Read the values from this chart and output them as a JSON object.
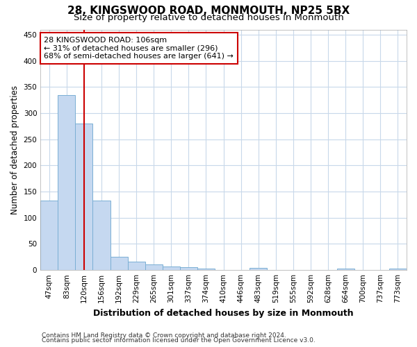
{
  "title": "28, KINGSWOOD ROAD, MONMOUTH, NP25 5BX",
  "subtitle": "Size of property relative to detached houses in Monmouth",
  "xlabel": "Distribution of detached houses by size in Monmouth",
  "ylabel": "Number of detached properties",
  "bar_labels": [
    "47sqm",
    "83sqm",
    "120sqm",
    "156sqm",
    "192sqm",
    "229sqm",
    "265sqm",
    "301sqm",
    "337sqm",
    "374sqm",
    "410sqm",
    "446sqm",
    "483sqm",
    "519sqm",
    "555sqm",
    "592sqm",
    "628sqm",
    "664sqm",
    "700sqm",
    "737sqm",
    "773sqm"
  ],
  "bar_values": [
    133,
    335,
    280,
    133,
    26,
    16,
    11,
    7,
    5,
    3,
    0,
    0,
    4,
    0,
    0,
    0,
    0,
    3,
    0,
    0,
    3
  ],
  "bar_color": "#c5d8f0",
  "bar_edge_color": "#7aafd4",
  "vline_x": 2.0,
  "vline_color": "#cc0000",
  "annotation_line1": "28 KINGSWOOD ROAD: 106sqm",
  "annotation_line2": "← 31% of detached houses are smaller (296)",
  "annotation_line3": "68% of semi-detached houses are larger (641) →",
  "annotation_box_color": "#ffffff",
  "annotation_box_edge": "#cc0000",
  "ylim": [
    0,
    460
  ],
  "yticks": [
    0,
    50,
    100,
    150,
    200,
    250,
    300,
    350,
    400,
    450
  ],
  "grid_color": "#c8d8ea",
  "footer_line1": "Contains HM Land Registry data © Crown copyright and database right 2024.",
  "footer_line2": "Contains public sector information licensed under the Open Government Licence v3.0.",
  "background_color": "#ffffff",
  "title_fontsize": 11,
  "subtitle_fontsize": 9.5,
  "xlabel_fontsize": 9,
  "ylabel_fontsize": 8.5,
  "tick_fontsize": 7.5,
  "annot_fontsize": 8,
  "footer_fontsize": 6.5
}
